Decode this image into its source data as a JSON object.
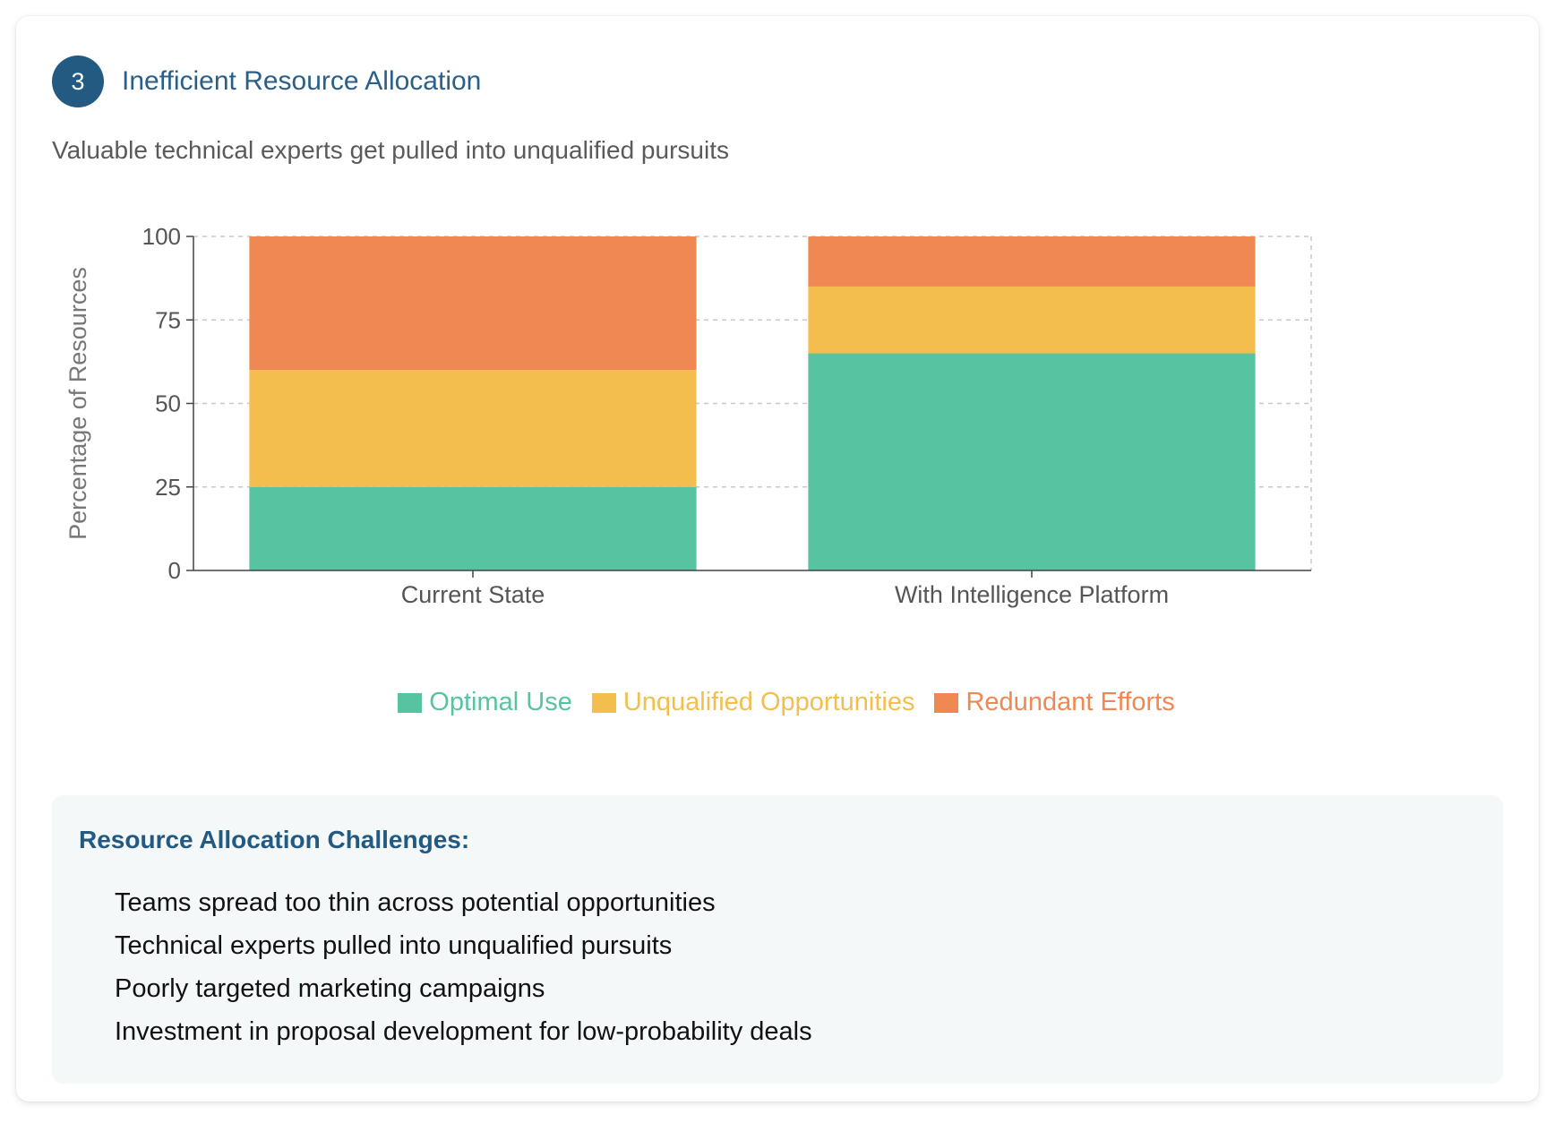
{
  "section": {
    "number": "3",
    "title": "Inefficient Resource Allocation",
    "subtitle": "Valuable technical experts get pulled into unqualified pursuits"
  },
  "chart_data": {
    "type": "bar",
    "stacked": true,
    "categories": [
      "Current State",
      "With Intelligence Platform"
    ],
    "series": [
      {
        "name": "Optimal Use",
        "values": [
          25,
          65
        ],
        "color": "#57c3a1"
      },
      {
        "name": "Unqualified Opportunities",
        "values": [
          35,
          20
        ],
        "color": "#f4be4f"
      },
      {
        "name": "Redundant Efforts",
        "values": [
          40,
          15
        ],
        "color": "#f08853"
      }
    ],
    "ylabel": "Percentage of Resources",
    "xlabel": "",
    "ylim": [
      0,
      100
    ],
    "yticks": [
      0,
      25,
      50,
      75,
      100
    ],
    "grid": true,
    "legend_position": "bottom"
  },
  "challenges": {
    "title": "Resource Allocation Challenges:",
    "items": [
      "Teams spread too thin across potential opportunities",
      "Technical experts pulled into unqualified pursuits",
      "Poorly targeted marketing campaigns",
      "Investment in proposal development for low-probability deals"
    ]
  },
  "colors": {
    "accent": "#225a82",
    "title": "#2a5f88"
  }
}
